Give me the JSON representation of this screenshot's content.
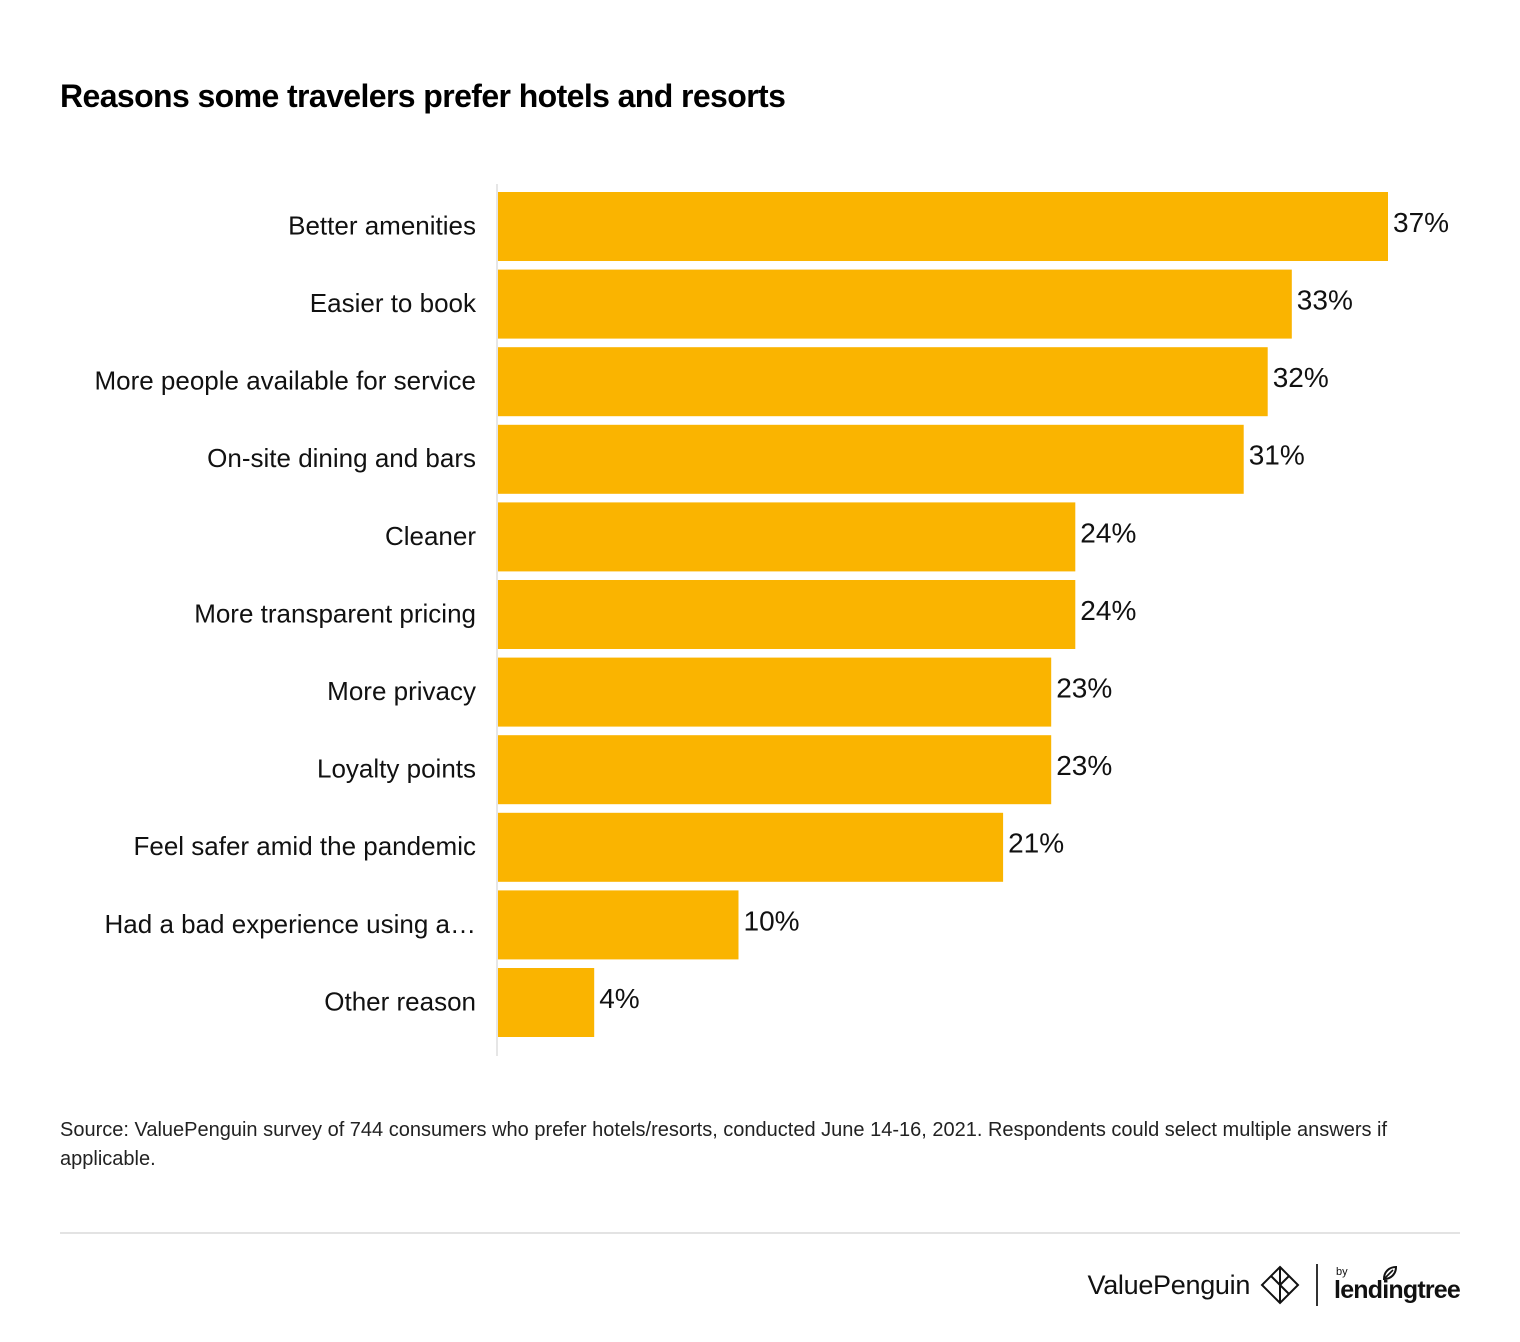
{
  "chart_data": {
    "type": "bar",
    "orientation": "horizontal",
    "title": "Reasons some travelers prefer hotels and resorts",
    "categories": [
      "Better amenities",
      "Easier to book",
      "More people available for service",
      "On-site dining and bars",
      "Cleaner",
      "More transparent pricing",
      "More privacy",
      "Loyalty points",
      "Feel safer amid the pandemic",
      "Had a bad experience using a…",
      "Other reason"
    ],
    "values": [
      37,
      33,
      32,
      31,
      24,
      24,
      23,
      23,
      21,
      10,
      4
    ],
    "value_labels": [
      "37%",
      "33%",
      "32%",
      "31%",
      "24%",
      "24%",
      "23%",
      "23%",
      "21%",
      "10%",
      "4%"
    ],
    "unit": "%",
    "xlim": [
      0,
      37
    ],
    "grid": false,
    "legend": "none",
    "bar_color": "#FAB400"
  },
  "source_note": "Source: ValuePenguin survey of 744 consumers who prefer hotels/resorts, conducted June 14-16, 2021. Respondents could select multiple answers if applicable.",
  "footer": {
    "brand_name": "ValuePenguin",
    "partner_by": "by",
    "partner_name": "lendingtree",
    "brand_icon": "valuepenguin-logo-icon",
    "partner_icon": "lendingtree-leaf-icon"
  }
}
